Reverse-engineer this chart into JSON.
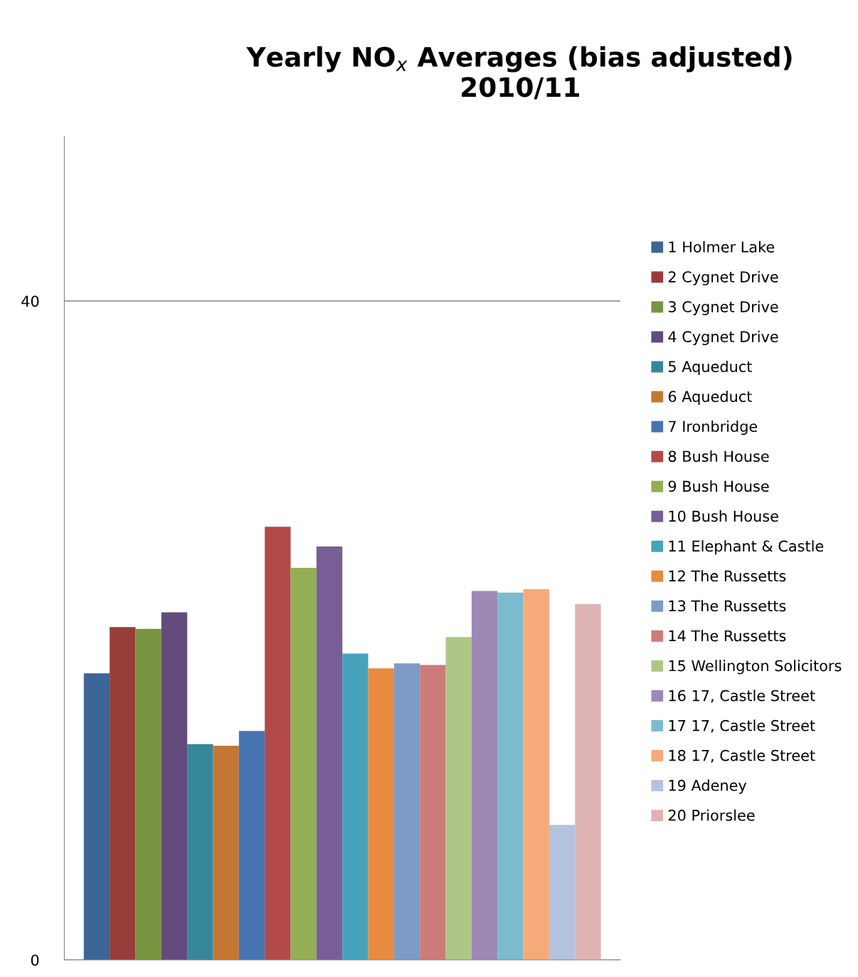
{
  "chart_data": {
    "type": "bar",
    "title": "Yearly NO$_{x}$ Averages (bias adjusted)\n2010/11",
    "categories": [
      null
    ],
    "ylim": [
      0,
      50
    ],
    "yticks": [
      0,
      40
    ],
    "grid": "y",
    "legend": "right",
    "series": [
      {
        "name": "1 Holmer Lake",
        "color": "#3d6596",
        "values": [
          17.4
        ]
      },
      {
        "name": "2 Cygnet Drive",
        "color": "#983d3a",
        "values": [
          20.2
        ]
      },
      {
        "name": "3 Cygnet Drive",
        "color": "#789440",
        "values": [
          20.1
        ]
      },
      {
        "name": "4 Cygnet Drive",
        "color": "#634c7d",
        "values": [
          21.1
        ]
      },
      {
        "name": "5 Aqueduct",
        "color": "#37879a",
        "values": [
          13.1
        ]
      },
      {
        "name": "6 Aqueduct",
        "color": "#c47633",
        "values": [
          13.0
        ]
      },
      {
        "name": "7 Ironbridge",
        "color": "#4674b0",
        "values": [
          13.9
        ]
      },
      {
        "name": "8 Bush House",
        "color": "#b24a47",
        "values": [
          26.3
        ]
      },
      {
        "name": "9 Bush House",
        "color": "#93ae55",
        "values": [
          23.8
        ]
      },
      {
        "name": "10 Bush House",
        "color": "#785e96",
        "values": [
          25.1
        ]
      },
      {
        "name": "11 Elephant & Castle",
        "color": "#46a1ba",
        "values": [
          18.6
        ]
      },
      {
        "name": "12 The Russetts",
        "color": "#e78c3f",
        "values": [
          17.7
        ]
      },
      {
        "name": "13 The Russetts",
        "color": "#7e9bc8",
        "values": [
          18.0
        ]
      },
      {
        "name": "14 The Russetts",
        "color": "#cb7b79",
        "values": [
          17.9
        ]
      },
      {
        "name": "15 Wellington Solicitors",
        "color": "#afc786",
        "values": [
          19.6
        ]
      },
      {
        "name": "16 17, Castle Street",
        "color": "#9d89b5",
        "values": [
          22.4
        ]
      },
      {
        "name": "17 17, Castle Street",
        "color": "#7cbace",
        "values": [
          22.3
        ]
      },
      {
        "name": "18 17, Castle Street",
        "color": "#f7aa79",
        "values": [
          22.5
        ]
      },
      {
        "name": "19 Adeney",
        "color": "#b5c2dd",
        "values": [
          8.2
        ]
      },
      {
        "name": "20 Priorslee",
        "color": "#dfb3b3",
        "values": [
          21.6
        ]
      }
    ]
  }
}
